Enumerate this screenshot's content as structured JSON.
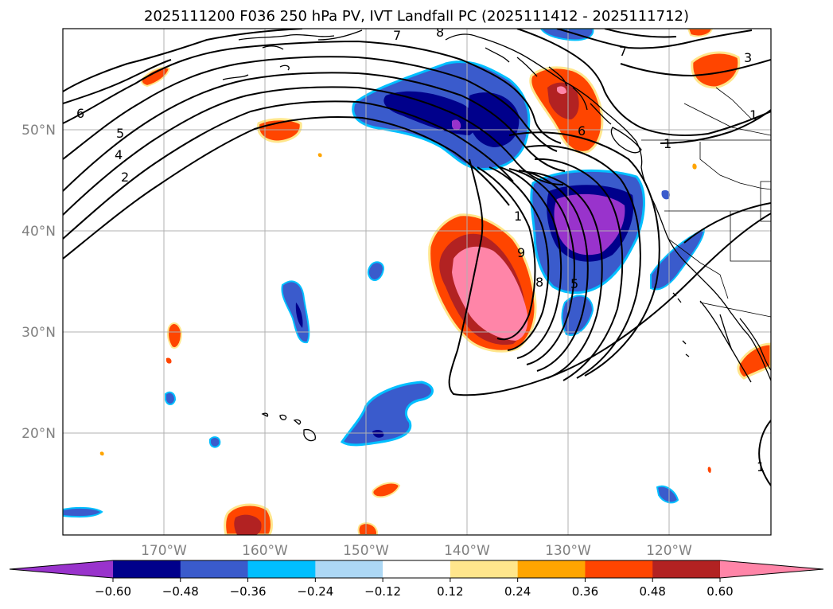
{
  "title": "2025111200 F036 250 hPa PV, IVT Landfall PC (2025111412 - 2025111712)",
  "map": {
    "lon_labels": [
      "170°W",
      "160°W",
      "150°W",
      "140°W",
      "130°W",
      "120°W"
    ],
    "lat_labels": [
      "50°N",
      "40°N",
      "30°N",
      "20°N"
    ]
  },
  "contour_labels": [
    "7",
    "8",
    "7",
    "3",
    "6",
    "5",
    "4",
    "2",
    "1",
    "1",
    "9",
    "8",
    "5",
    "1",
    "6",
    "1"
  ],
  "colorbar": {
    "ticks": [
      "−0.60",
      "−0.48",
      "−0.36",
      "−0.24",
      "−0.12",
      "0.12",
      "0.24",
      "0.36",
      "0.48",
      "0.60"
    ],
    "colors": [
      "#9933cc",
      "#00008b",
      "#3a5bcc",
      "#00bfff",
      "#add8f5",
      "#ffffff",
      "#ffe68c",
      "#ffa500",
      "#ff4500",
      "#b22222",
      "#ff85a8"
    ]
  }
}
